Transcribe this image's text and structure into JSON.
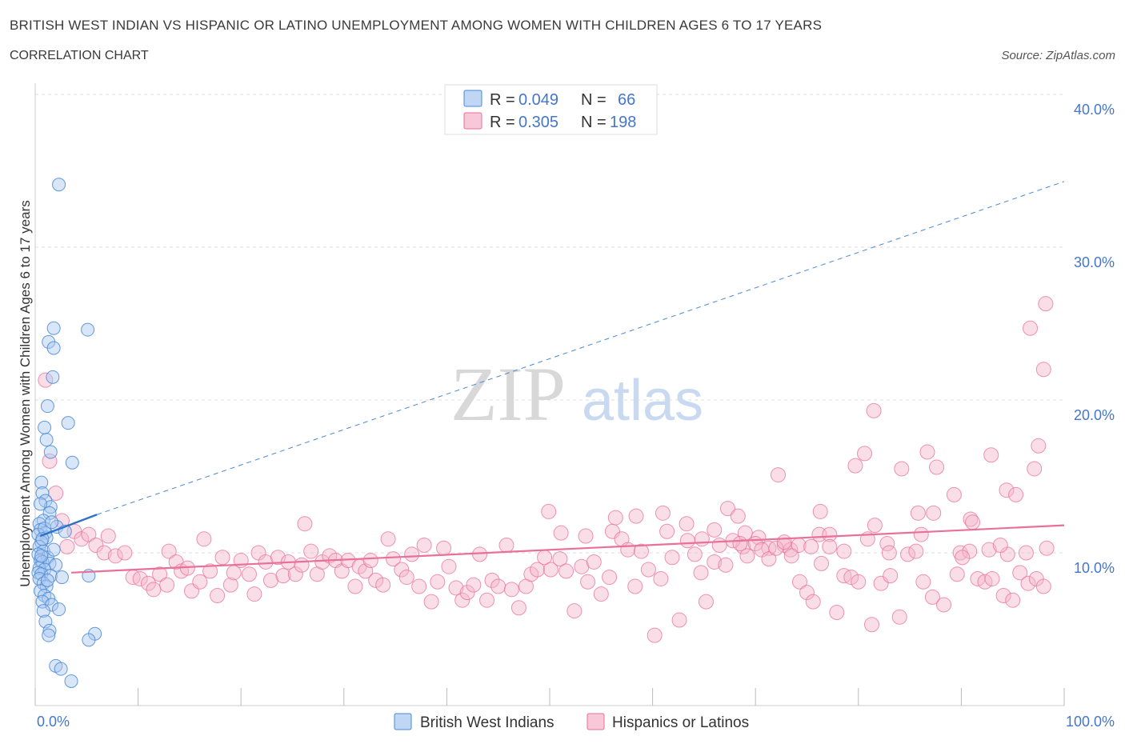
{
  "title": "BRITISH WEST INDIAN VS HISPANIC OR LATINO UNEMPLOYMENT AMONG WOMEN WITH CHILDREN AGES 6 TO 17 YEARS",
  "subtitle": "CORRELATION CHART",
  "source": "Source: ZipAtlas.com",
  "watermark": {
    "zip": "ZIP",
    "atlas": "atlas"
  },
  "colors": {
    "blue": "#4a88d8",
    "blue_fill": "#a9c8f0",
    "pink": "#e8709a",
    "pink_fill": "#f4b6ca",
    "axis_text": "#4477cc"
  },
  "legend": {
    "rows": [
      {
        "r_label": "R = ",
        "r_value": "0.049",
        "n_label": "N = ",
        "n_value": "66"
      },
      {
        "r_label": "R = ",
        "r_value": "0.305",
        "n_label": "N = ",
        "n_value": "198"
      }
    ]
  },
  "bottom_legend": [
    "British West Indians",
    "Hispanics or Latinos"
  ],
  "chart_data": {
    "type": "scatter",
    "xlabel": "",
    "ylabel": "Unemployment Among Women with Children Ages 6 to 17 years",
    "xlim": [
      0,
      100
    ],
    "ylim": [
      0,
      40
    ],
    "x_tick_labels": [
      "0.0%",
      "100.0%"
    ],
    "y_ticks": [
      10,
      20,
      30,
      40
    ],
    "y_tick_labels": [
      "10.0%",
      "20.0%",
      "30.0%",
      "40.0%"
    ],
    "grid": true,
    "legend_position": "top-center",
    "series": [
      {
        "name": "British West Indians",
        "color": "#4a88d8",
        "trend_solid": [
          [
            0.5,
            11.1
          ],
          [
            6.0,
            12.5
          ]
        ],
        "trend_dashed": [
          [
            6.0,
            12.5
          ],
          [
            100,
            34.3
          ]
        ],
        "points": [
          [
            2.3,
            34.1
          ],
          [
            5.1,
            24.6
          ],
          [
            1.8,
            24.7
          ],
          [
            1.3,
            23.8
          ],
          [
            1.8,
            23.4
          ],
          [
            1.7,
            21.5
          ],
          [
            1.2,
            19.6
          ],
          [
            3.2,
            18.5
          ],
          [
            0.9,
            18.2
          ],
          [
            1.1,
            17.4
          ],
          [
            1.5,
            16.6
          ],
          [
            3.6,
            15.9
          ],
          [
            0.6,
            14.6
          ],
          [
            0.7,
            13.9
          ],
          [
            1.0,
            13.4
          ],
          [
            1.5,
            13.0
          ],
          [
            1.4,
            12.6
          ],
          [
            0.8,
            12.1
          ],
          [
            0.4,
            11.9
          ],
          [
            2.1,
            11.7
          ],
          [
            0.5,
            11.5
          ],
          [
            1.0,
            11.3
          ],
          [
            0.3,
            11.2
          ],
          [
            2.9,
            11.4
          ],
          [
            1.1,
            11.0
          ],
          [
            0.6,
            10.7
          ],
          [
            0.4,
            10.4
          ],
          [
            0.8,
            10.1
          ],
          [
            0.3,
            9.9
          ],
          [
            1.2,
            9.7
          ],
          [
            0.5,
            9.5
          ],
          [
            0.7,
            9.4
          ],
          [
            1.4,
            9.3
          ],
          [
            2.0,
            9.2
          ],
          [
            0.4,
            9.0
          ],
          [
            0.9,
            8.9
          ],
          [
            0.3,
            8.7
          ],
          [
            0.6,
            8.6
          ],
          [
            1.5,
            8.5
          ],
          [
            0.4,
            8.3
          ],
          [
            2.6,
            8.4
          ],
          [
            5.2,
            8.5
          ],
          [
            0.8,
            8.0
          ],
          [
            1.1,
            7.8
          ],
          [
            0.5,
            7.5
          ],
          [
            0.9,
            7.2
          ],
          [
            1.3,
            7.0
          ],
          [
            0.7,
            6.8
          ],
          [
            1.6,
            6.6
          ],
          [
            2.3,
            6.3
          ],
          [
            0.8,
            6.2
          ],
          [
            1.0,
            5.5
          ],
          [
            1.4,
            4.9
          ],
          [
            1.3,
            4.6
          ],
          [
            5.8,
            4.7
          ],
          [
            5.2,
            4.3
          ],
          [
            2.0,
            2.6
          ],
          [
            2.5,
            2.4
          ],
          [
            3.5,
            1.6
          ],
          [
            0.6,
            9.8
          ],
          [
            1.8,
            10.2
          ],
          [
            0.9,
            11.6
          ],
          [
            1.6,
            12.0
          ],
          [
            0.5,
            13.2
          ],
          [
            0.7,
            10.9
          ],
          [
            1.2,
            8.2
          ]
        ]
      },
      {
        "name": "Hispanics or Latinos",
        "color": "#e8709a",
        "trend_solid": [
          [
            3.5,
            8.7
          ],
          [
            100,
            11.8
          ]
        ],
        "points": [
          [
            98.2,
            26.3
          ],
          [
            96.7,
            24.7
          ],
          [
            98.0,
            22.0
          ],
          [
            81.5,
            19.3
          ],
          [
            97.5,
            17.0
          ],
          [
            80.6,
            16.5
          ],
          [
            86.7,
            16.6
          ],
          [
            92.9,
            16.4
          ],
          [
            79.7,
            15.7
          ],
          [
            84.2,
            15.5
          ],
          [
            87.6,
            15.6
          ],
          [
            97.1,
            15.5
          ],
          [
            72.2,
            15.1
          ],
          [
            94.4,
            14.1
          ],
          [
            95.3,
            13.8
          ],
          [
            89.3,
            13.8
          ],
          [
            67.3,
            12.9
          ],
          [
            76.3,
            12.7
          ],
          [
            85.8,
            12.6
          ],
          [
            87.3,
            12.6
          ],
          [
            68.3,
            12.4
          ],
          [
            90.9,
            12.2
          ],
          [
            81.6,
            11.8
          ],
          [
            91.1,
            12.0
          ],
          [
            76.2,
            11.2
          ],
          [
            77.2,
            11.2
          ],
          [
            66.0,
            11.5
          ],
          [
            69.0,
            11.3
          ],
          [
            70.3,
            11.0
          ],
          [
            86.1,
            11.2
          ],
          [
            63.3,
            11.9
          ],
          [
            56.1,
            11.4
          ],
          [
            51.1,
            11.3
          ],
          [
            53.5,
            11.1
          ],
          [
            49.9,
            12.7
          ],
          [
            58.4,
            12.4
          ],
          [
            61.0,
            12.6
          ],
          [
            64.8,
            10.9
          ],
          [
            68.8,
            10.4
          ],
          [
            72.8,
            10.5
          ],
          [
            71.3,
            10.3
          ],
          [
            73.4,
            10.2
          ],
          [
            74.2,
            10.5
          ],
          [
            75.4,
            10.4
          ],
          [
            78.6,
            10.1
          ],
          [
            82.8,
            10.6
          ],
          [
            83.0,
            10.0
          ],
          [
            89.9,
            10.0
          ],
          [
            90.8,
            10.1
          ],
          [
            92.7,
            10.2
          ],
          [
            94.5,
            9.9
          ],
          [
            96.3,
            10.0
          ],
          [
            98.3,
            10.3
          ],
          [
            93.8,
            10.5
          ],
          [
            1.0,
            21.3
          ],
          [
            1.4,
            16.0
          ],
          [
            2.0,
            13.9
          ],
          [
            2.6,
            12.1
          ],
          [
            3.1,
            10.4
          ],
          [
            3.8,
            11.4
          ],
          [
            4.5,
            10.9
          ],
          [
            5.2,
            11.2
          ],
          [
            5.9,
            10.5
          ],
          [
            6.7,
            10.0
          ],
          [
            7.1,
            11.1
          ],
          [
            7.8,
            9.8
          ],
          [
            8.7,
            10.0
          ],
          [
            9.5,
            8.4
          ],
          [
            10.2,
            8.3
          ],
          [
            11.0,
            8.0
          ],
          [
            11.5,
            7.6
          ],
          [
            12.1,
            8.6
          ],
          [
            12.8,
            7.9
          ],
          [
            13.0,
            10.1
          ],
          [
            13.7,
            9.4
          ],
          [
            14.2,
            8.8
          ],
          [
            14.8,
            9.0
          ],
          [
            15.2,
            7.5
          ],
          [
            16.0,
            8.1
          ],
          [
            16.4,
            10.9
          ],
          [
            17.0,
            8.8
          ],
          [
            17.7,
            7.2
          ],
          [
            18.2,
            9.7
          ],
          [
            19.0,
            7.9
          ],
          [
            19.3,
            8.7
          ],
          [
            20.0,
            9.5
          ],
          [
            20.8,
            8.6
          ],
          [
            21.3,
            7.3
          ],
          [
            21.7,
            10.0
          ],
          [
            22.4,
            9.4
          ],
          [
            22.9,
            8.2
          ],
          [
            23.6,
            9.7
          ],
          [
            24.1,
            8.5
          ],
          [
            24.6,
            9.4
          ],
          [
            25.3,
            8.6
          ],
          [
            25.9,
            9.2
          ],
          [
            26.2,
            11.9
          ],
          [
            26.8,
            10.1
          ],
          [
            27.4,
            8.6
          ],
          [
            27.9,
            9.4
          ],
          [
            28.6,
            9.8
          ],
          [
            29.2,
            9.5
          ],
          [
            29.8,
            8.8
          ],
          [
            30.4,
            9.5
          ],
          [
            31.1,
            7.8
          ],
          [
            31.5,
            9.1
          ],
          [
            32.1,
            8.8
          ],
          [
            32.6,
            9.5
          ],
          [
            33.1,
            8.2
          ],
          [
            33.8,
            7.9
          ],
          [
            34.3,
            10.9
          ],
          [
            34.8,
            9.6
          ],
          [
            35.6,
            8.9
          ],
          [
            36.1,
            8.4
          ],
          [
            36.6,
            9.9
          ],
          [
            37.3,
            7.8
          ],
          [
            37.8,
            10.5
          ],
          [
            38.5,
            6.8
          ],
          [
            39.1,
            8.1
          ],
          [
            39.7,
            10.3
          ],
          [
            40.2,
            9.1
          ],
          [
            40.9,
            7.7
          ],
          [
            41.5,
            6.9
          ],
          [
            42.0,
            7.4
          ],
          [
            42.6,
            7.9
          ],
          [
            43.2,
            9.9
          ],
          [
            43.9,
            6.9
          ],
          [
            44.4,
            8.2
          ],
          [
            45.0,
            7.8
          ],
          [
            45.8,
            10.5
          ],
          [
            46.3,
            7.6
          ],
          [
            47.0,
            6.4
          ],
          [
            47.7,
            7.8
          ],
          [
            48.2,
            8.6
          ],
          [
            48.8,
            8.9
          ],
          [
            49.5,
            9.7
          ],
          [
            50.1,
            8.9
          ],
          [
            51.0,
            9.6
          ],
          [
            51.6,
            8.8
          ],
          [
            52.4,
            6.2
          ],
          [
            53.1,
            9.1
          ],
          [
            53.7,
            8.1
          ],
          [
            54.3,
            9.4
          ],
          [
            55.0,
            7.3
          ],
          [
            55.8,
            8.4
          ],
          [
            56.4,
            12.3
          ],
          [
            57.0,
            10.9
          ],
          [
            57.6,
            10.2
          ],
          [
            58.3,
            7.8
          ],
          [
            58.9,
            10.1
          ],
          [
            59.6,
            8.9
          ],
          [
            60.2,
            4.6
          ],
          [
            60.8,
            8.3
          ],
          [
            61.4,
            11.4
          ],
          [
            61.9,
            9.7
          ],
          [
            62.6,
            5.6
          ],
          [
            63.4,
            10.8
          ],
          [
            64.1,
            9.9
          ],
          [
            64.7,
            8.7
          ],
          [
            65.2,
            6.8
          ],
          [
            66.0,
            9.4
          ],
          [
            66.5,
            10.5
          ],
          [
            67.1,
            9.2
          ],
          [
            67.8,
            10.8
          ],
          [
            68.5,
            10.6
          ],
          [
            69.2,
            9.8
          ],
          [
            70.0,
            10.6
          ],
          [
            70.6,
            10.2
          ],
          [
            71.3,
            9.6
          ],
          [
            72.0,
            10.3
          ],
          [
            72.8,
            10.7
          ],
          [
            73.5,
            9.8
          ],
          [
            74.3,
            8.1
          ],
          [
            75.0,
            7.4
          ],
          [
            75.6,
            6.8
          ],
          [
            76.4,
            9.3
          ],
          [
            77.2,
            10.4
          ],
          [
            77.9,
            6.1
          ],
          [
            78.6,
            8.5
          ],
          [
            79.3,
            8.4
          ],
          [
            80.0,
            8.1
          ],
          [
            80.9,
            10.9
          ],
          [
            81.3,
            5.3
          ],
          [
            82.2,
            8.0
          ],
          [
            83.1,
            8.5
          ],
          [
            84.0,
            5.8
          ],
          [
            84.8,
            9.9
          ],
          [
            85.6,
            10.1
          ],
          [
            86.3,
            8.1
          ],
          [
            87.2,
            7.1
          ],
          [
            88.3,
            6.6
          ],
          [
            89.6,
            8.6
          ],
          [
            90.1,
            9.7
          ],
          [
            91.6,
            8.3
          ],
          [
            92.3,
            8.1
          ],
          [
            93.0,
            8.3
          ],
          [
            94.1,
            7.2
          ],
          [
            95.0,
            6.9
          ],
          [
            95.7,
            8.7
          ],
          [
            96.5,
            8.0
          ],
          [
            97.3,
            8.3
          ],
          [
            98.0,
            7.8
          ]
        ]
      }
    ]
  }
}
